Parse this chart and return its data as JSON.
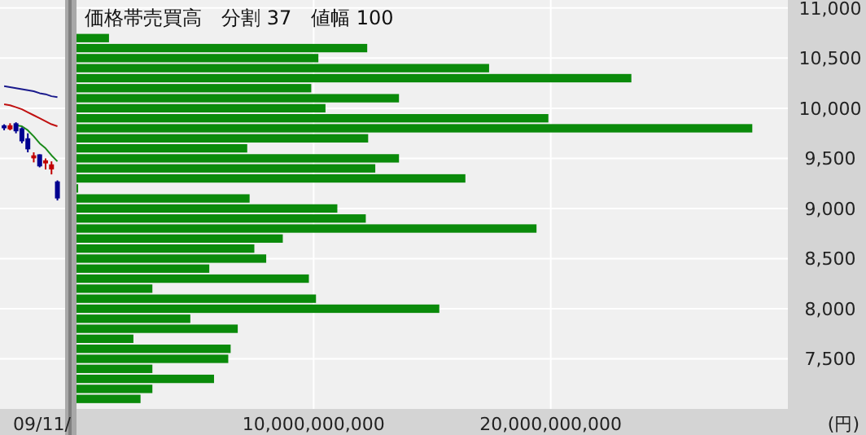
{
  "chart_data": [
    {
      "type": "candlestick",
      "categories": [
        null,
        null,
        null,
        null,
        null,
        null,
        null,
        null,
        null,
        null
      ],
      "ohlc": [
        [
          9830,
          9840,
          9780,
          9800
        ],
        [
          9790,
          9850,
          9780,
          9830
        ],
        [
          9850,
          9860,
          9750,
          9770
        ],
        [
          9800,
          9810,
          9650,
          9670
        ],
        [
          9700,
          9750,
          9560,
          9590
        ],
        [
          9500,
          9560,
          9460,
          9530
        ],
        [
          9540,
          9540,
          9410,
          9420
        ],
        [
          9450,
          9500,
          9390,
          9480
        ],
        [
          9390,
          9470,
          9340,
          9440
        ],
        [
          9270,
          9280,
          9080,
          9100
        ]
      ],
      "colors": [
        "#000090",
        "#c00000",
        "#000090",
        "#000090",
        "#000090",
        "#c00000",
        "#000090",
        "#c00000",
        "#c00000",
        "#000090"
      ],
      "series": [
        {
          "type": "line",
          "color": "#1a1a8c",
          "values": [
            10220,
            10210,
            10200,
            10190,
            10180,
            10170,
            10150,
            10140,
            10120,
            10110
          ]
        },
        {
          "type": "line",
          "color": "#c01010",
          "values": [
            10040,
            10030,
            10010,
            9990,
            9960,
            9930,
            9900,
            9870,
            9840,
            9820
          ]
        },
        {
          "type": "line",
          "color": "#1a8a1a",
          "values": [
            null,
            null,
            9830,
            9820,
            9780,
            9720,
            9650,
            9600,
            9530,
            9470
          ]
        }
      ],
      "ylim": [
        7000,
        11080
      ],
      "yticks": [
        7500,
        8000,
        8500,
        9000,
        9500,
        10000,
        10500,
        11000
      ],
      "grid": "y",
      "tick_labels": false,
      "annotations": [
        "09/11/"
      ]
    },
    {
      "type": "histogram",
      "orientation": "horizontal",
      "title": "価格帯売買高　分割 37　値幅 100",
      "ylabel": "(円)",
      "bins": [
        7050,
        7150,
        7250,
        7350,
        7450,
        7550,
        7650,
        7750,
        7850,
        7950,
        8050,
        8150,
        8250,
        8350,
        8450,
        8550,
        8650,
        8750,
        8850,
        8950,
        9050,
        9150,
        9250,
        9350,
        9450,
        9550,
        9650,
        9750,
        9850,
        9950,
        10050,
        10150,
        10250,
        10350,
        10450,
        10550,
        10650,
        10750
      ],
      "values": [
        2700000000,
        3200000000,
        5800000000,
        3200000000,
        6400000000,
        6500000000,
        2400000000,
        6800000000,
        4800000000,
        15300000000,
        10100000000,
        3200000000,
        9800000000,
        5600000000,
        8000000000,
        7500000000,
        8700000000,
        19400000000,
        12200000000,
        11000000000,
        7300000000,
        70000000,
        16400000000,
        12600000000,
        13600000000,
        7200000000,
        12300000000,
        28500000000,
        19900000000,
        10500000000,
        13600000000,
        9900000000,
        23400000000,
        17400000000,
        10200000000,
        12260000000,
        1370000000
      ],
      "color": "#0a8a0a",
      "xlim": [
        0,
        30000000000
      ],
      "xticks": [
        {
          "value": 10000000000,
          "label": "10,000,000,000"
        },
        {
          "value": 20000000000,
          "label": "20,000,000,000"
        }
      ],
      "ylim": [
        7000,
        11080
      ],
      "yticks": [
        {
          "value": 7500,
          "label": "7,500"
        },
        {
          "value": 8000,
          "label": "8,000"
        },
        {
          "value": 8500,
          "label": "8,500"
        },
        {
          "value": 9000,
          "label": "9,000"
        },
        {
          "value": 9500,
          "label": "9,500"
        },
        {
          "value": 10000,
          "label": "10,000"
        },
        {
          "value": 10500,
          "label": "10,500"
        },
        {
          "value": 11000,
          "label": "11,000"
        }
      ],
      "grid": true
    }
  ]
}
